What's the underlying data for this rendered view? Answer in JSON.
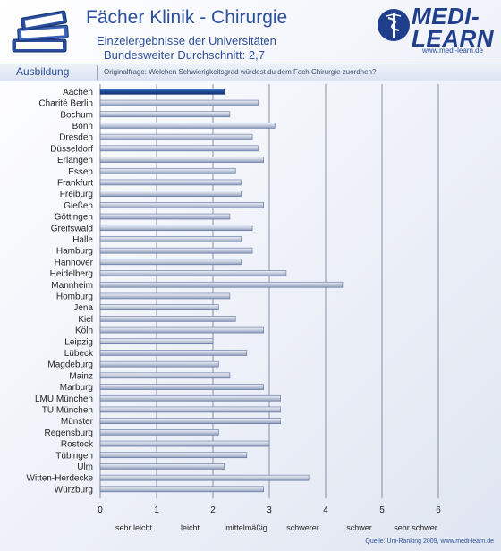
{
  "header": {
    "title": "Fächer Klinik - Chirurgie",
    "subtitle_line1": "Einzelergebnisse der Universitäten",
    "subtitle_line2": "Bundesweiter Durchschnitt: 2,7",
    "logo_line1": "MEDI-",
    "logo_line2": "LEARN",
    "logo_url": "www.medi-learn.de"
  },
  "banner": {
    "section": "Ausbildung",
    "question": "Originalfrage: Welchen Schwierigkeitsgrad würdest du dem Fach Chirurgie zuordnen?"
  },
  "footer": {
    "source": "Quelle: Uni-Ranking 2009, www.medi-learn.de"
  },
  "colors": {
    "highlight_bar": "#1f4a9a",
    "bar": "#c8d0e0",
    "bar_border": "#5a6f9e",
    "title": "#2c4f9b"
  },
  "chart_data": {
    "type": "bar",
    "orientation": "horizontal",
    "categories": [
      "Aachen",
      "Charité Berlin",
      "Bochum",
      "Bonn",
      "Dresden",
      "Düsseldorf",
      "Erlangen",
      "Essen",
      "Frankfurt",
      "Freiburg",
      "Gießen",
      "Göttingen",
      "Greifswald",
      "Halle",
      "Hamburg",
      "Hannover",
      "Heidelberg",
      "Mannheim",
      "Homburg",
      "Jena",
      "Kiel",
      "Köln",
      "Leipzig",
      "Lübeck",
      "Magdeburg",
      "Mainz",
      "Marburg",
      "LMU München",
      "TU München",
      "Münster",
      "Regensburg",
      "Rostock",
      "Tübingen",
      "Ulm",
      "Witten-Herdecke",
      "Würzburg"
    ],
    "values": [
      2.2,
      2.8,
      2.3,
      3.1,
      2.7,
      2.8,
      2.9,
      2.4,
      2.5,
      2.5,
      2.9,
      2.3,
      2.7,
      2.5,
      2.7,
      2.5,
      3.3,
      4.3,
      2.3,
      2.1,
      2.4,
      2.9,
      2.0,
      2.6,
      2.1,
      2.3,
      2.9,
      3.2,
      3.2,
      3.2,
      2.1,
      3.0,
      2.6,
      2.2,
      3.7,
      2.9
    ],
    "highlight_category": "Aachen",
    "xlim": [
      0,
      6
    ],
    "xticks": [
      "0",
      "1",
      "2",
      "3",
      "4",
      "5",
      "6"
    ],
    "scale_labels": [
      "sehr leicht",
      "leicht",
      "mittelmäßig",
      "schwerer",
      "schwer",
      "sehr schwer"
    ],
    "grid": "vertical"
  }
}
